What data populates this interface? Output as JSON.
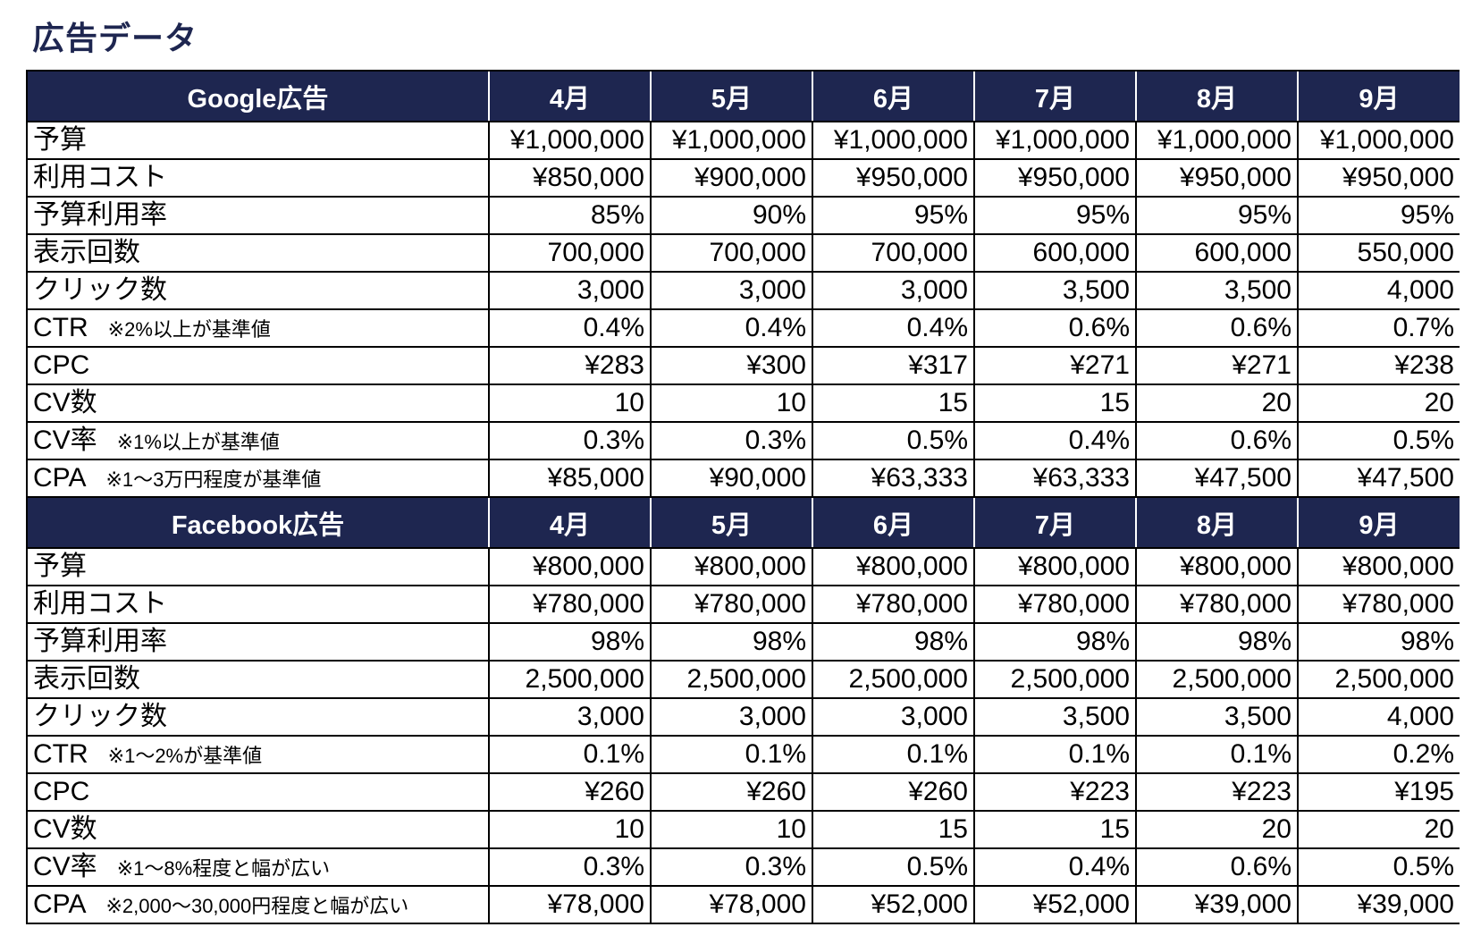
{
  "title": "広告データ",
  "months": [
    "4月",
    "5月",
    "6月",
    "7月",
    "8月",
    "9月"
  ],
  "sections": [
    {
      "name": "Google広告",
      "rows": [
        {
          "label": "予算",
          "note": "",
          "values": [
            "¥1,000,000",
            "¥1,000,000",
            "¥1,000,000",
            "¥1,000,000",
            "¥1,000,000",
            "¥1,000,000"
          ]
        },
        {
          "label": "利用コスト",
          "note": "",
          "values": [
            "¥850,000",
            "¥900,000",
            "¥950,000",
            "¥950,000",
            "¥950,000",
            "¥950,000"
          ]
        },
        {
          "label": "予算利用率",
          "note": "",
          "values": [
            "85%",
            "90%",
            "95%",
            "95%",
            "95%",
            "95%"
          ]
        },
        {
          "label": "表示回数",
          "note": "",
          "values": [
            "700,000",
            "700,000",
            "700,000",
            "600,000",
            "600,000",
            "550,000"
          ]
        },
        {
          "label": "クリック数",
          "note": "",
          "values": [
            "3,000",
            "3,000",
            "3,000",
            "3,500",
            "3,500",
            "4,000"
          ]
        },
        {
          "label": "CTR",
          "note": "※2%以上が基準値",
          "values": [
            "0.4%",
            "0.4%",
            "0.4%",
            "0.6%",
            "0.6%",
            "0.7%"
          ]
        },
        {
          "label": "CPC",
          "note": "",
          "values": [
            "¥283",
            "¥300",
            "¥317",
            "¥271",
            "¥271",
            "¥238"
          ]
        },
        {
          "label": "CV数",
          "note": "",
          "values": [
            "10",
            "10",
            "15",
            "15",
            "20",
            "20"
          ]
        },
        {
          "label": "CV率",
          "note": "※1%以上が基準値",
          "values": [
            "0.3%",
            "0.3%",
            "0.5%",
            "0.4%",
            "0.6%",
            "0.5%"
          ]
        },
        {
          "label": "CPA",
          "note": "※1～3万円程度が基準値",
          "values": [
            "¥85,000",
            "¥90,000",
            "¥63,333",
            "¥63,333",
            "¥47,500",
            "¥47,500"
          ]
        }
      ]
    },
    {
      "name": "Facebook広告",
      "rows": [
        {
          "label": "予算",
          "note": "",
          "values": [
            "¥800,000",
            "¥800,000",
            "¥800,000",
            "¥800,000",
            "¥800,000",
            "¥800,000"
          ]
        },
        {
          "label": "利用コスト",
          "note": "",
          "values": [
            "¥780,000",
            "¥780,000",
            "¥780,000",
            "¥780,000",
            "¥780,000",
            "¥780,000"
          ]
        },
        {
          "label": "予算利用率",
          "note": "",
          "values": [
            "98%",
            "98%",
            "98%",
            "98%",
            "98%",
            "98%"
          ]
        },
        {
          "label": "表示回数",
          "note": "",
          "values": [
            "2,500,000",
            "2,500,000",
            "2,500,000",
            "2,500,000",
            "2,500,000",
            "2,500,000"
          ]
        },
        {
          "label": "クリック数",
          "note": "",
          "values": [
            "3,000",
            "3,000",
            "3,000",
            "3,500",
            "3,500",
            "4,000"
          ]
        },
        {
          "label": "CTR",
          "note": "※1～2%が基準値",
          "values": [
            "0.1%",
            "0.1%",
            "0.1%",
            "0.1%",
            "0.1%",
            "0.2%"
          ]
        },
        {
          "label": "CPC",
          "note": "",
          "values": [
            "¥260",
            "¥260",
            "¥260",
            "¥223",
            "¥223",
            "¥195"
          ]
        },
        {
          "label": "CV数",
          "note": "",
          "values": [
            "10",
            "10",
            "15",
            "15",
            "20",
            "20"
          ]
        },
        {
          "label": "CV率",
          "note": "※1～8%程度と幅が広い",
          "values": [
            "0.3%",
            "0.3%",
            "0.5%",
            "0.4%",
            "0.6%",
            "0.5%"
          ]
        },
        {
          "label": "CPA",
          "note": "※2,000～30,000円程度と幅が広い",
          "values": [
            "¥78,000",
            "¥78,000",
            "¥52,000",
            "¥52,000",
            "¥39,000",
            "¥39,000"
          ]
        }
      ]
    }
  ]
}
